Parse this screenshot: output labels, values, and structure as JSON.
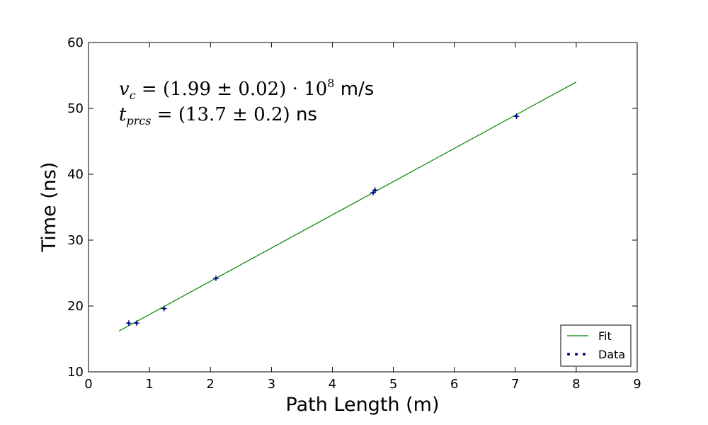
{
  "chart_data": {
    "type": "scatter",
    "xlabel": "Path Length (m)",
    "ylabel": "Time (ns)",
    "xlim": [
      0,
      9
    ],
    "ylim": [
      10,
      60
    ],
    "xticks": [
      0,
      1,
      2,
      3,
      4,
      5,
      6,
      7,
      8,
      9
    ],
    "yticks": [
      10,
      20,
      30,
      40,
      50,
      60
    ],
    "grid": false,
    "legend_position": "bottom-right",
    "series": [
      {
        "name": "Fit",
        "kind": "line",
        "color": "#008000",
        "x": [
          0.5,
          8
        ],
        "y": [
          16.2,
          54.0
        ]
      },
      {
        "name": "Data",
        "kind": "scatter",
        "color": "#00008b",
        "x": [
          0.66,
          0.79,
          1.24,
          2.09,
          4.67,
          4.7,
          7.02
        ],
        "y": [
          17.4,
          17.4,
          19.6,
          24.2,
          37.2,
          37.6,
          48.8
        ]
      }
    ],
    "annotations": [
      {
        "math": "v_c = (1.99 ± 0.02) · 10^8",
        "unit": "m/s"
      },
      {
        "math": "t_prcs = (13.7 ± 0.2)",
        "unit": "ns"
      }
    ]
  }
}
